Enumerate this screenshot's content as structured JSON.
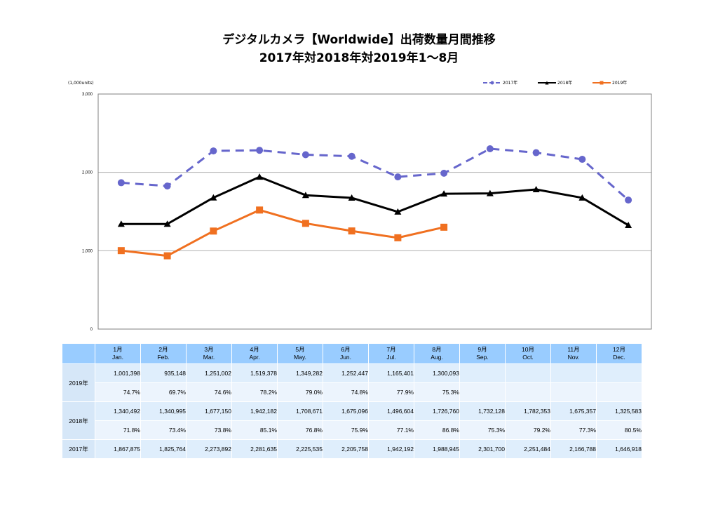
{
  "title": {
    "line1": "デジタルカメラ【Worldwide】出荷数量月間推移",
    "line2": "2017年対2018年対2019年1～8月"
  },
  "chart_data": {
    "type": "line",
    "title": "デジタルカメラ【Worldwide】出荷数量月間推移 2017年対2018年対2019年1～8月",
    "ylabel": "(1,000units)",
    "xlabel": "",
    "ylim": [
      0,
      3000
    ],
    "yticks": [
      0,
      1000,
      2000,
      3000
    ],
    "ytick_labels": [
      "0",
      "1,000",
      "2,000",
      "3,000"
    ],
    "grid": true,
    "legend_position": "top-right",
    "categories": [
      "1月 Jan.",
      "2月 Feb.",
      "3月 Mar.",
      "4月 Apr.",
      "5月 May.",
      "6月 Jun.",
      "7月 Jul.",
      "8月 Aug.",
      "9月 Sep.",
      "10月 Oct.",
      "11月 Nov.",
      "12月 Dec."
    ],
    "series": [
      {
        "name": "2017年",
        "color": "#6666cc",
        "style": "dashed",
        "marker": "circle",
        "values": [
          1867.875,
          1825.764,
          2273.892,
          2281.635,
          2225.535,
          2205.758,
          1942.192,
          1988.945,
          2301.7,
          2251.484,
          2166.788,
          1646.918
        ]
      },
      {
        "name": "2018年",
        "color": "#000000",
        "style": "solid",
        "marker": "triangle",
        "values": [
          1340.492,
          1340.995,
          1677.15,
          1942.182,
          1708.671,
          1675.096,
          1496.604,
          1726.76,
          1732.128,
          1782.353,
          1675.357,
          1325.583
        ]
      },
      {
        "name": "2019年",
        "color": "#f07020",
        "style": "solid",
        "marker": "square",
        "values": [
          1001.398,
          935.148,
          1251.002,
          1519.378,
          1349.282,
          1252.447,
          1165.401,
          1300.093,
          null,
          null,
          null,
          null
        ]
      }
    ]
  },
  "legend": [
    {
      "label": "2017年"
    },
    {
      "label": "2018年"
    },
    {
      "label": "2019年"
    }
  ],
  "table": {
    "months": [
      {
        "jp": "1月",
        "en": "Jan."
      },
      {
        "jp": "2月",
        "en": "Feb."
      },
      {
        "jp": "3月",
        "en": "Mar."
      },
      {
        "jp": "4月",
        "en": "Apr."
      },
      {
        "jp": "5月",
        "en": "May."
      },
      {
        "jp": "6月",
        "en": "Jun."
      },
      {
        "jp": "7月",
        "en": "Jul."
      },
      {
        "jp": "8月",
        "en": "Aug."
      },
      {
        "jp": "9月",
        "en": "Sep."
      },
      {
        "jp": "10月",
        "en": "Oct."
      },
      {
        "jp": "11月",
        "en": "Nov."
      },
      {
        "jp": "12月",
        "en": "Dec."
      }
    ],
    "rows": {
      "y2019": {
        "label": "2019年",
        "units": [
          "1,001,398",
          "935,148",
          "1,251,002",
          "1,519,378",
          "1,349,282",
          "1,252,447",
          "1,165,401",
          "1,300,093",
          "",
          "",
          "",
          ""
        ],
        "pct": [
          "74.7%",
          "69.7%",
          "74.6%",
          "78.2%",
          "79.0%",
          "74.8%",
          "77.9%",
          "75.3%",
          "",
          "",
          "",
          ""
        ]
      },
      "y2018": {
        "label": "2018年",
        "units": [
          "1,340,492",
          "1,340,995",
          "1,677,150",
          "1,942,182",
          "1,708,671",
          "1,675,096",
          "1,496,604",
          "1,726,760",
          "1,732,128",
          "1,782,353",
          "1,675,357",
          "1,325,583"
        ],
        "pct": [
          "71.8%",
          "73.4%",
          "73.8%",
          "85.1%",
          "76.8%",
          "75.9%",
          "77.1%",
          "86.8%",
          "75.3%",
          "79.2%",
          "77.3%",
          "80.5%"
        ]
      },
      "y2017": {
        "label": "2017年",
        "units": [
          "1,867,875",
          "1,825,764",
          "2,273,892",
          "2,281,635",
          "2,225,535",
          "2,205,758",
          "1,942,192",
          "1,988,945",
          "2,301,700",
          "2,251,484",
          "2,166,788",
          "1,646,918"
        ]
      }
    }
  }
}
